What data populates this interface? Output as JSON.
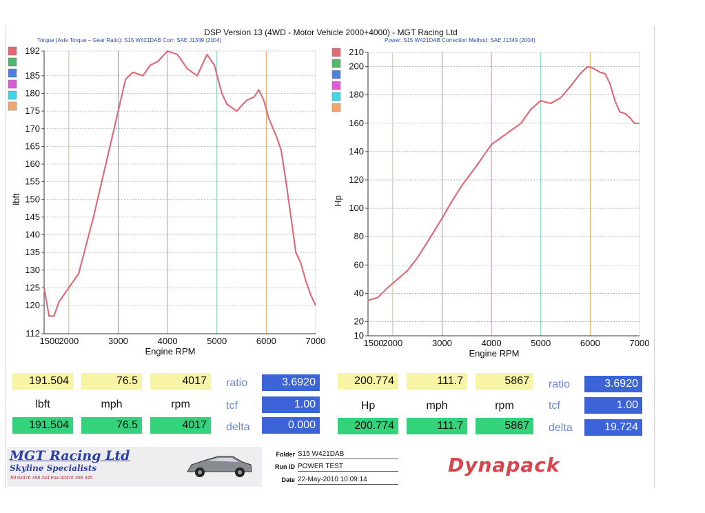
{
  "header": {
    "title": "DSP Version 13 (4WD - Motor Vehicle 2000+4000) - MGT Racing Ltd",
    "left_subtitle": "Torque (Axle Torque ÷ Gear Ratio): S15 W421DAB    Corr: SAE J1349 (2004)",
    "right_subtitle": "Power: S15 W421DAB    Correction Method: SAE J1349 (2004)"
  },
  "legend_colors": [
    "#e06b77",
    "#50b86a",
    "#4f7fe0",
    "#e05ad8",
    "#3fd6e8",
    "#f0a870"
  ],
  "chart_data": [
    {
      "type": "line",
      "xlabel": "Engine RPM",
      "ylabel": "lbft",
      "xlim": [
        1500,
        7000
      ],
      "ylim": [
        112,
        192
      ],
      "x_ticks": [
        1500,
        2000,
        3000,
        4000,
        5000,
        6000,
        7000
      ],
      "y_ticks": [
        112,
        120,
        125,
        130,
        135,
        140,
        145,
        150,
        155,
        160,
        165,
        170,
        175,
        180,
        185,
        192
      ],
      "grid": true,
      "line_color": "#e06b77",
      "x": [
        1500,
        1600,
        1700,
        1800,
        2000,
        2200,
        2500,
        2700,
        3000,
        3150,
        3300,
        3500,
        3650,
        3800,
        4000,
        4200,
        4400,
        4600,
        4800,
        4950,
        5100,
        5200,
        5400,
        5600,
        5750,
        5850,
        5950,
        6050,
        6200,
        6300,
        6400,
        6500,
        6600,
        6700,
        6800,
        6900,
        7000
      ],
      "y": [
        125,
        117,
        117,
        121,
        125,
        129,
        145,
        157,
        175,
        184,
        186,
        185,
        188,
        189,
        192,
        191,
        187,
        185,
        191,
        188,
        180,
        177,
        175,
        178,
        179,
        181,
        178,
        173,
        168,
        164,
        155,
        145,
        135,
        132,
        127,
        123,
        120
      ]
    },
    {
      "type": "line",
      "xlabel": "Engine RPM",
      "ylabel": "Hp",
      "xlim": [
        1500,
        7000
      ],
      "ylim": [
        10,
        210
      ],
      "x_ticks": [
        1500,
        2000,
        3000,
        4000,
        5000,
        6000,
        7000
      ],
      "y_ticks": [
        10,
        20,
        40,
        60,
        80,
        100,
        120,
        140,
        160,
        180,
        200,
        210
      ],
      "grid": true,
      "line_color": "#e06b77",
      "x": [
        1500,
        1700,
        1900,
        2100,
        2300,
        2500,
        2700,
        3000,
        3200,
        3400,
        3700,
        4000,
        4200,
        4400,
        4600,
        4800,
        5000,
        5200,
        5400,
        5600,
        5800,
        5950,
        6050,
        6200,
        6300,
        6400,
        6500,
        6600,
        6700,
        6800,
        6900,
        7000
      ],
      "y": [
        35,
        37,
        44,
        50,
        56,
        65,
        76,
        93,
        105,
        116,
        130,
        145,
        150,
        155,
        160,
        170,
        176,
        174,
        178,
        186,
        195,
        200,
        199,
        196,
        195,
        188,
        176,
        168,
        167,
        164,
        160,
        160
      ]
    }
  ],
  "readouts": {
    "left": {
      "top": [
        "191.504",
        "76.5",
        "4017"
      ],
      "bottom": [
        "191.504",
        "76.5",
        "4017"
      ],
      "units": [
        "lbft",
        "mph",
        "rpm"
      ],
      "ratio_label": "ratio",
      "ratio": "3.6920",
      "tcf_label": "tcf",
      "tcf": "1.00",
      "delta_label": "delta",
      "delta": "0.000"
    },
    "right": {
      "top": [
        "200.774",
        "111.7",
        "5867"
      ],
      "bottom": [
        "200.774",
        "111.7",
        "5867"
      ],
      "units": [
        "Hp",
        "mph",
        "rpm"
      ],
      "ratio_label": "ratio",
      "ratio": "3.6920",
      "tcf_label": "tcf",
      "tcf": "1.00",
      "delta_label": "delta",
      "delta": "19.724"
    }
  },
  "footer": {
    "company": "MGT Racing Ltd",
    "tagline": "Skyline Specialists",
    "phone": "Tel 02476 398 344   Fax 02476 398 345",
    "folder_label": "Folder",
    "folder": "S15 W421DAB",
    "run_label": "Run ID",
    "run_id": "POWER TEST",
    "date_label": "Date",
    "date": "22-May-2010 10:09:14",
    "brand": "Dynapack"
  }
}
